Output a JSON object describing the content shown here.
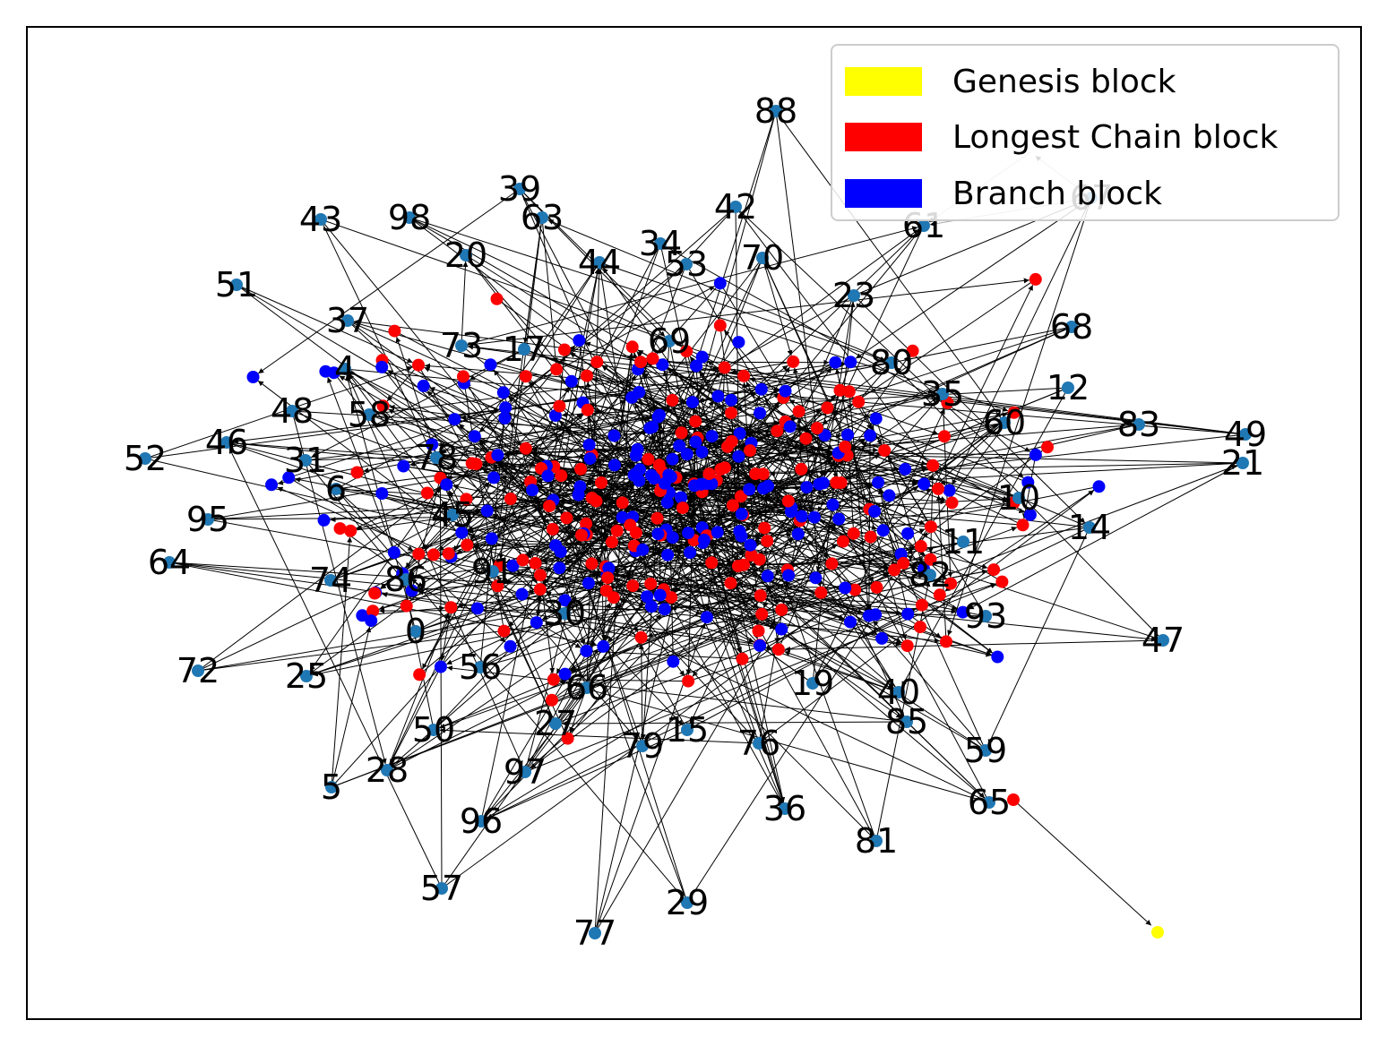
{
  "figure": {
    "background": "#ffffff",
    "frame_color": "#000000",
    "edge_color": "#000000",
    "hub_node_color": "#1f77b4",
    "genesis_color": "#ffff00",
    "longest_color": "#ff0000",
    "branch_color": "#0000ff"
  },
  "legend": {
    "items": [
      {
        "label": "Genesis block",
        "color": "#ffff00"
      },
      {
        "label": "Longest Chain block",
        "color": "#ff0000"
      },
      {
        "label": "Branch block",
        "color": "#0000ff"
      }
    ]
  },
  "hub_labels": [
    "88",
    "39",
    "43",
    "98",
    "63",
    "42",
    "34",
    "61",
    "67",
    "20",
    "44",
    "53",
    "70",
    "51",
    "23",
    "37",
    "73",
    "17",
    "69",
    "68",
    "80",
    "12",
    "4",
    "35",
    "48",
    "58",
    "60",
    "83",
    "49",
    "46",
    "52",
    "31",
    "78",
    "21",
    "10",
    "6",
    "95",
    "45",
    "14",
    "64",
    "11",
    "91",
    "74",
    "86",
    "82",
    "30",
    "93",
    "0",
    "72",
    "25",
    "56",
    "47",
    "66",
    "19",
    "40",
    "50",
    "27",
    "85",
    "15",
    "59",
    "76",
    "79",
    "5",
    "28",
    "97",
    "65",
    "96",
    "36",
    "81",
    "57",
    "29",
    "77"
  ]
}
